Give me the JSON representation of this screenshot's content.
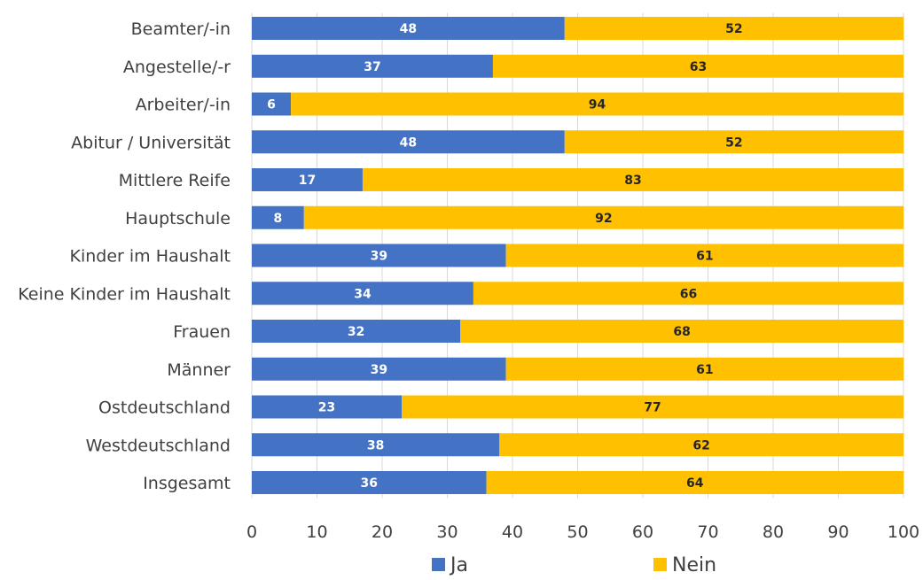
{
  "chart_data": {
    "type": "bar",
    "orientation": "horizontal",
    "stacked": true,
    "categories": [
      "Beamter/-in",
      "Angestelle/-r",
      "Arbeiter/-in",
      "Abitur / Universität",
      "Mittlere Reife",
      "Hauptschule",
      "Kinder im Haushalt",
      "Keine Kinder im Haushalt",
      "Frauen",
      "Männer",
      "Ostdeutschland",
      "Westdeutschland",
      "Insgesamt"
    ],
    "series": [
      {
        "name": "Ja",
        "color": "#4472C4",
        "label_color": "#ffffff",
        "values": [
          48,
          37,
          6,
          48,
          17,
          8,
          39,
          34,
          32,
          39,
          23,
          38,
          36
        ]
      },
      {
        "name": "Nein",
        "color": "#FFC000",
        "label_color": "#262626",
        "values": [
          52,
          63,
          94,
          52,
          83,
          92,
          61,
          66,
          68,
          61,
          77,
          62,
          64
        ]
      }
    ],
    "xlim": [
      0,
      100
    ],
    "xticks": [
      0,
      10,
      20,
      30,
      40,
      50,
      60,
      70,
      80,
      90,
      100
    ],
    "grid": "vertical",
    "grid_color": "#d9d9d9",
    "legend_position": "bottom",
    "title": "",
    "xlabel": "",
    "ylabel": ""
  }
}
